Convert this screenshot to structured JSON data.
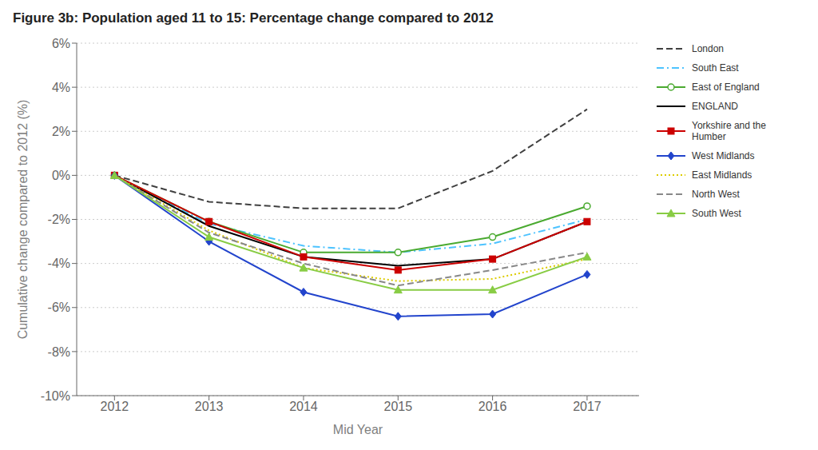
{
  "chart_data": {
    "type": "line",
    "title": "Figure 3b: Population aged 11 to 15: Percentage change compared to 2012",
    "x_label": "Mid Year",
    "y_label": "Cumulative change compared to 2012 (%)",
    "x": [
      2012,
      2013,
      2014,
      2015,
      2016,
      2017
    ],
    "xlim": [
      2011.6,
      2017.55
    ],
    "xticks": [
      2012,
      2013,
      2014,
      2015,
      2016,
      2017
    ],
    "ylim": [
      -10,
      6
    ],
    "yticks": [
      {
        "value": -10,
        "label": "-10%"
      },
      {
        "value": -8,
        "label": "-8%"
      },
      {
        "value": -6,
        "label": "-6%"
      },
      {
        "value": -4,
        "label": "-4%"
      },
      {
        "value": -2,
        "label": "-2%"
      },
      {
        "value": 0,
        "label": "0%"
      },
      {
        "value": 2,
        "label": "2%"
      },
      {
        "value": 4,
        "label": "4%"
      },
      {
        "value": 6,
        "label": "6%"
      }
    ],
    "grid": true,
    "legend": "right",
    "series": [
      {
        "name": "London",
        "color": "#404040",
        "line_style": "dashed",
        "values": [
          0.0,
          -1.2,
          -1.5,
          -1.5,
          0.2,
          3.0
        ]
      },
      {
        "name": "South East",
        "color": "#4dc3ff",
        "line_style": "dashdot",
        "values": [
          0.0,
          -2.2,
          -3.2,
          -3.5,
          -3.1,
          -2.0
        ]
      },
      {
        "name": "East of England",
        "color": "#4aaa30",
        "line_style": "solid",
        "marker": "circle",
        "values": [
          0.0,
          -2.1,
          -3.5,
          -3.5,
          -2.8,
          -1.4
        ]
      },
      {
        "name": "ENGLAND",
        "color": "#000000",
        "line_style": "solid",
        "values": [
          0.0,
          -2.3,
          -3.7,
          -4.1,
          -3.8,
          -2.1
        ]
      },
      {
        "name": "Yorkshire and the\nHumber",
        "color": "#cc0000",
        "line_style": "solid",
        "marker": "square",
        "values": [
          0.0,
          -2.1,
          -3.7,
          -4.3,
          -3.8,
          -2.1
        ]
      },
      {
        "name": "West Midlands",
        "color": "#2244cc",
        "line_style": "solid",
        "marker": "diamond",
        "values": [
          0.0,
          -3.0,
          -5.3,
          -6.4,
          -6.3,
          -4.5
        ]
      },
      {
        "name": "East Midlands",
        "color": "#ddcc00",
        "line_style": "dotted",
        "values": [
          0.0,
          -2.5,
          -4.2,
          -4.8,
          -4.7,
          -3.8
        ]
      },
      {
        "name": "North West",
        "color": "#888888",
        "line_style": "dashed",
        "values": [
          0.0,
          -2.6,
          -4.0,
          -5.0,
          -4.3,
          -3.5
        ]
      },
      {
        "name": "South West",
        "color": "#88cc44",
        "line_style": "solid",
        "marker": "triangle",
        "values": [
          0.0,
          -2.8,
          -4.2,
          -5.2,
          -5.2,
          -3.7
        ]
      }
    ]
  }
}
